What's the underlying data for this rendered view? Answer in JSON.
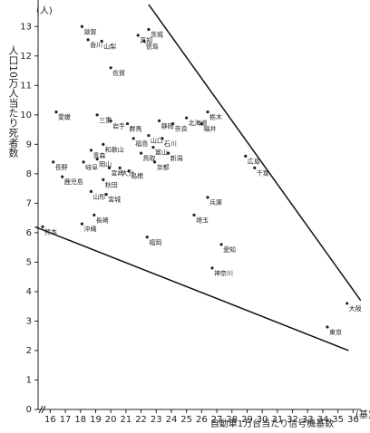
{
  "chart_data": {
    "type": "scatter",
    "y_label": "人口10万人当たり死者数",
    "x_label": "自動車1万台当たり信号機基数",
    "y_unit": "(人)",
    "x_unit": "(基)",
    "point_labels": [
      "滋賀",
      "香川",
      "山梨",
      "佐賀",
      "高知",
      "茨城",
      "徳島",
      "愛媛",
      "三重",
      "岩手",
      "群馬",
      "福島",
      "山口",
      "静岡",
      "奈良",
      "北海道",
      "栃木",
      "福井",
      "石川",
      "富山",
      "新潟",
      "鳥取",
      "京都",
      "和歌山",
      "青森",
      "岡山",
      "長野",
      "鹿児島",
      "岐阜",
      "宮崎",
      "大分",
      "島根",
      "秋田",
      "山形",
      "宮城",
      "広島",
      "千葉",
      "兵庫",
      "埼玉",
      "沖縄",
      "長崎",
      "熊本",
      "福岡",
      "愛知",
      "神奈川",
      "大阪",
      "東京"
    ],
    "x": [
      18.1,
      18.5,
      19.4,
      20.0,
      21.8,
      22.5,
      22.2,
      16.4,
      19.1,
      20.0,
      21.1,
      21.5,
      22.5,
      23.2,
      24.1,
      25.0,
      26.4,
      26.0,
      23.4,
      22.8,
      23.8,
      22.0,
      22.9,
      19.5,
      18.7,
      19.1,
      16.2,
      16.8,
      18.2,
      19.9,
      20.6,
      21.2,
      19.5,
      18.7,
      19.7,
      28.9,
      29.5,
      26.4,
      25.5,
      18.1,
      18.9,
      15.5,
      22.4,
      27.3,
      26.7,
      35.6,
      34.3
    ],
    "values": [
      13.0,
      12.55,
      12.5,
      11.6,
      12.7,
      12.9,
      12.5,
      10.1,
      10.0,
      9.8,
      9.7,
      9.2,
      9.3,
      9.8,
      9.7,
      9.9,
      10.1,
      9.7,
      9.2,
      8.9,
      8.7,
      8.7,
      8.4,
      9.0,
      8.8,
      8.5,
      8.4,
      7.9,
      8.4,
      8.2,
      8.2,
      8.1,
      7.8,
      7.4,
      7.3,
      8.6,
      8.2,
      7.2,
      6.6,
      6.3,
      6.6,
      6.2,
      5.85,
      5.6,
      4.8,
      3.6,
      2.8
    ],
    "lines": [
      {
        "x": [
          22.5,
          36.5
        ],
        "values": [
          13.75,
          3.7
        ]
      },
      {
        "x": [
          15.0,
          35.7
        ],
        "values": [
          6.2,
          2.0
        ]
      }
    ],
    "xlim": [
      15.2,
      36.5
    ],
    "ylim": [
      0,
      13.9
    ],
    "xticks": [
      16,
      17,
      18,
      19,
      20,
      21,
      22,
      23,
      24,
      25,
      26,
      27,
      28,
      29,
      30,
      31,
      32,
      33,
      34,
      35,
      36
    ],
    "yticks": [
      0,
      1,
      2,
      3,
      4,
      5,
      6,
      7,
      8,
      9,
      10,
      11,
      12,
      13
    ],
    "color": "#222222"
  }
}
